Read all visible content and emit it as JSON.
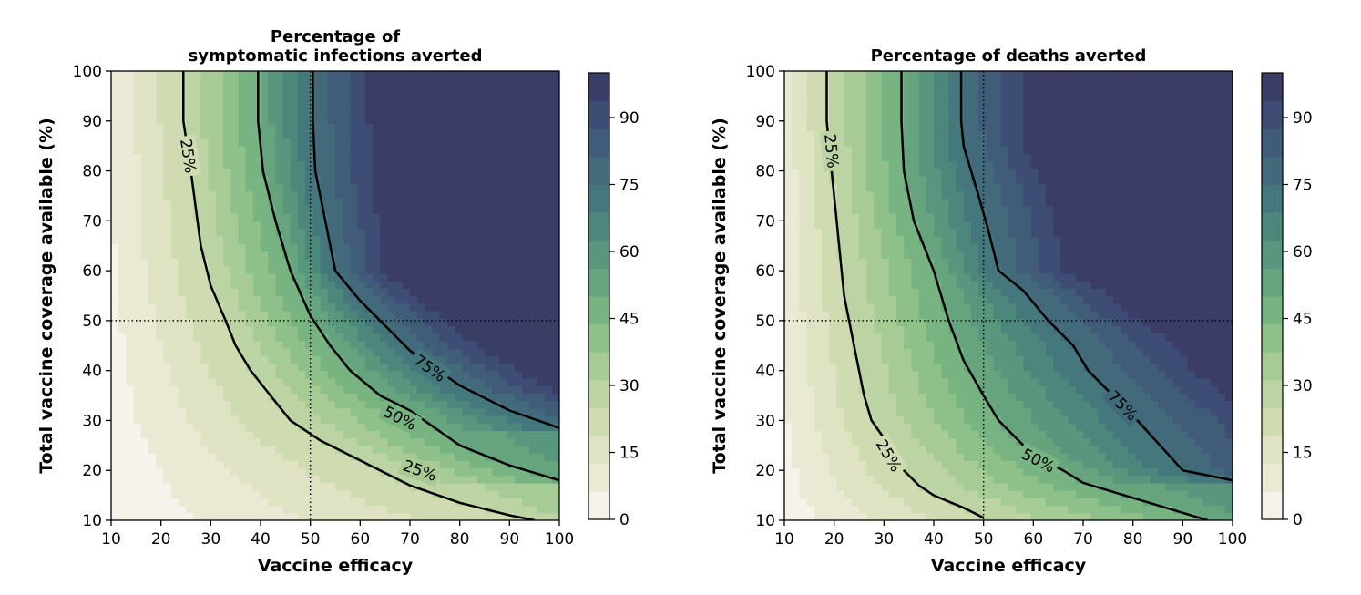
{
  "colors": {
    "scale": [
      "#f6f3ea",
      "#e9e9d4",
      "#dfe3c3",
      "#cfdcb2",
      "#bcd4a3",
      "#a6cb95",
      "#8ec08a",
      "#78b382",
      "#66a47e",
      "#58967d",
      "#4c877c",
      "#45787c",
      "#426a7b",
      "#405c79",
      "#3d4d74",
      "#3a3d66"
    ],
    "contour_line": "#000000",
    "reference_line": "#000000"
  },
  "chart_data": [
    {
      "type": "heatmap",
      "subtype": "filled-contour",
      "title": "Percentage of\nsymptomatic infections averted",
      "xlabel": "Vaccine efficacy",
      "ylabel": "Total vaccine coverage available (%)",
      "xlim": [
        10,
        100
      ],
      "ylim": [
        10,
        100
      ],
      "xticks": [
        10,
        20,
        30,
        40,
        50,
        60,
        70,
        80,
        90,
        100
      ],
      "yticks": [
        10,
        20,
        30,
        40,
        50,
        60,
        70,
        80,
        90,
        100
      ],
      "colorbar": {
        "range": [
          0,
          100
        ],
        "ticks": [
          0,
          15,
          30,
          45,
          60,
          75,
          90
        ]
      },
      "reference_lines": {
        "x": 50,
        "y": 50
      },
      "contours": [
        {
          "label": "25%",
          "points": [
            [
              24.5,
              100
            ],
            [
              24.5,
              90
            ],
            [
              26,
              80
            ],
            [
              28,
              65
            ],
            [
              30,
              57
            ],
            [
              33,
              50
            ],
            [
              35,
              45
            ],
            [
              38,
              40
            ],
            [
              42,
              35
            ],
            [
              46,
              30
            ],
            [
              52,
              26
            ],
            [
              60,
              22
            ],
            [
              70,
              17
            ],
            [
              80,
              13.5
            ],
            [
              90,
              11
            ],
            [
              95,
              10
            ]
          ],
          "label_at": [
            [
              25.5,
              83
            ],
            [
              72,
              20
            ]
          ]
        },
        {
          "label": "50%",
          "points": [
            [
              39.5,
              100
            ],
            [
              39.5,
              90
            ],
            [
              40.5,
              80
            ],
            [
              43,
              70
            ],
            [
              46,
              60
            ],
            [
              50,
              51
            ],
            [
              54,
              45
            ],
            [
              58,
              40
            ],
            [
              64,
              35
            ],
            [
              70,
              32
            ],
            [
              80,
              25
            ],
            [
              90,
              21
            ],
            [
              100,
              18
            ]
          ],
          "label_at": [
            [
              68,
              30.5
            ]
          ]
        },
        {
          "label": "75%",
          "points": [
            [
              50.5,
              100
            ],
            [
              50.5,
              90
            ],
            [
              51,
              80
            ],
            [
              53,
              70
            ],
            [
              55,
              60
            ],
            [
              60,
              54
            ],
            [
              65,
              49
            ],
            [
              70,
              44
            ],
            [
              80,
              37
            ],
            [
              90,
              32
            ],
            [
              100,
              28.5
            ]
          ],
          "label_at": [
            [
              74,
              40.5
            ]
          ]
        }
      ]
    },
    {
      "type": "heatmap",
      "subtype": "filled-contour",
      "title": "Percentage of deaths averted",
      "xlabel": "Vaccine efficacy",
      "ylabel": "Total vaccine coverage available (%)",
      "xlim": [
        10,
        100
      ],
      "ylim": [
        10,
        100
      ],
      "xticks": [
        10,
        20,
        30,
        40,
        50,
        60,
        70,
        80,
        90,
        100
      ],
      "yticks": [
        10,
        20,
        30,
        40,
        50,
        60,
        70,
        80,
        90,
        100
      ],
      "colorbar": {
        "range": [
          0,
          100
        ],
        "ticks": [
          0,
          15,
          30,
          45,
          60,
          75,
          90
        ]
      },
      "reference_lines": {
        "x": 50,
        "y": 50
      },
      "contours": [
        {
          "label": "25%",
          "points": [
            [
              18.5,
              100
            ],
            [
              18.5,
              90
            ],
            [
              19.5,
              80
            ],
            [
              20.5,
              70
            ],
            [
              22,
              55
            ],
            [
              24,
              45
            ],
            [
              26,
              35
            ],
            [
              27.5,
              30
            ],
            [
              31,
              25
            ],
            [
              34,
              20
            ],
            [
              37,
              17
            ],
            [
              40,
              15
            ],
            [
              46,
              12.5
            ],
            [
              50,
              10.5
            ]
          ],
          "label_at": [
            [
              19.5,
              84
            ],
            [
              31,
              23
            ]
          ]
        },
        {
          "label": "50%",
          "points": [
            [
              33.5,
              100
            ],
            [
              33.5,
              90
            ],
            [
              34,
              80
            ],
            [
              36,
              70
            ],
            [
              40,
              60
            ],
            [
              43,
              50
            ],
            [
              46,
              42
            ],
            [
              50,
              35
            ],
            [
              53,
              30
            ],
            [
              58,
              25
            ],
            [
              60,
              23
            ],
            [
              66,
              20
            ],
            [
              70,
              17.5
            ],
            [
              80,
              14.5
            ],
            [
              90,
              11.5
            ],
            [
              95,
              10
            ]
          ],
          "label_at": [
            [
              61,
              22
            ]
          ]
        },
        {
          "label": "75%",
          "points": [
            [
              45.5,
              100
            ],
            [
              45.5,
              90
            ],
            [
              46,
              85
            ],
            [
              49,
              75
            ],
            [
              51,
              68
            ],
            [
              53,
              60
            ],
            [
              58,
              56
            ],
            [
              63,
              50
            ],
            [
              68,
              45
            ],
            [
              71,
              40
            ],
            [
              76,
              35
            ],
            [
              80,
              31
            ],
            [
              90,
              20
            ],
            [
              100,
              18
            ]
          ],
          "label_at": [
            [
              78,
              33
            ]
          ]
        }
      ]
    }
  ]
}
